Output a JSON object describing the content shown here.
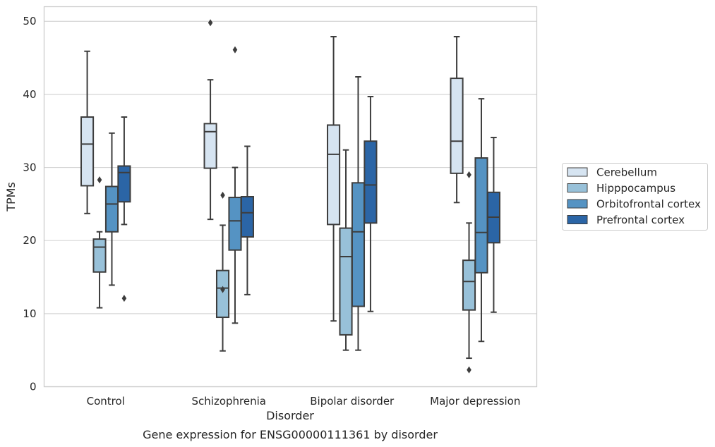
{
  "chart_data": {
    "type": "box",
    "xlabel": "Disorder",
    "ylabel": "TPMs",
    "caption": "Gene expression for ENSG00000111361 by disorder",
    "ylim": [
      0,
      52
    ],
    "yticks": [
      0,
      10,
      20,
      30,
      40,
      50
    ],
    "grid": "horizontal",
    "legend_placement": "right",
    "categories": [
      "Control",
      "Schizophrenia",
      "Bipolar disorder",
      "Major depression"
    ],
    "series": [
      {
        "name": "Cerebellum",
        "color": "#d6e4f1",
        "boxes": [
          {
            "whislo": 23.7,
            "q1": 27.5,
            "med": 33.2,
            "q3": 36.9,
            "whishi": 45.9,
            "fliers": []
          },
          {
            "whislo": 22.9,
            "q1": 29.9,
            "med": 34.9,
            "q3": 36.0,
            "whishi": 42.0,
            "fliers": [
              49.8
            ]
          },
          {
            "whislo": 9.0,
            "q1": 22.2,
            "med": 31.8,
            "q3": 35.8,
            "whishi": 47.9,
            "fliers": []
          },
          {
            "whislo": 25.2,
            "q1": 29.2,
            "med": 33.6,
            "q3": 42.2,
            "whishi": 47.9,
            "fliers": []
          }
        ]
      },
      {
        "name": "Hipppocampus",
        "color": "#98c1d9",
        "boxes": [
          {
            "whislo": 10.8,
            "q1": 15.7,
            "med": 19.1,
            "q3": 20.2,
            "whishi": 21.2,
            "fliers": [
              28.3
            ]
          },
          {
            "whislo": 4.9,
            "q1": 9.5,
            "med": 13.5,
            "q3": 15.9,
            "whishi": 22.1,
            "fliers": [
              13.3,
              26.2
            ]
          },
          {
            "whislo": 5.0,
            "q1": 7.1,
            "med": 17.8,
            "q3": 21.7,
            "whishi": 32.4,
            "fliers": []
          },
          {
            "whislo": 3.9,
            "q1": 10.5,
            "med": 14.4,
            "q3": 17.3,
            "whishi": 22.4,
            "fliers": [
              2.3,
              29.0
            ]
          }
        ]
      },
      {
        "name": "Orbitofrontal cortex",
        "color": "#5593c3",
        "boxes": [
          {
            "whislo": 13.9,
            "q1": 21.2,
            "med": 25.0,
            "q3": 27.4,
            "whishi": 34.7,
            "fliers": []
          },
          {
            "whislo": 8.7,
            "q1": 18.7,
            "med": 22.7,
            "q3": 25.9,
            "whishi": 30.0,
            "fliers": [
              46.1
            ]
          },
          {
            "whislo": 5.0,
            "q1": 11.0,
            "med": 21.2,
            "q3": 27.9,
            "whishi": 42.4,
            "fliers": []
          },
          {
            "whislo": 6.2,
            "q1": 15.6,
            "med": 21.1,
            "q3": 31.3,
            "whishi": 39.4,
            "fliers": []
          }
        ]
      },
      {
        "name": "Prefrontal cortex",
        "color": "#2b65a6",
        "boxes": [
          {
            "whislo": 22.2,
            "q1": 25.3,
            "med": 29.3,
            "q3": 30.2,
            "whishi": 36.9,
            "fliers": [
              12.1
            ]
          },
          {
            "whislo": 12.6,
            "q1": 20.5,
            "med": 23.8,
            "q3": 26.0,
            "whishi": 32.9,
            "fliers": []
          },
          {
            "whislo": 10.3,
            "q1": 22.4,
            "med": 27.6,
            "q3": 33.6,
            "whishi": 39.7,
            "fliers": []
          },
          {
            "whislo": 10.2,
            "q1": 19.7,
            "med": 23.2,
            "q3": 26.6,
            "whishi": 34.1,
            "fliers": []
          }
        ]
      }
    ]
  }
}
